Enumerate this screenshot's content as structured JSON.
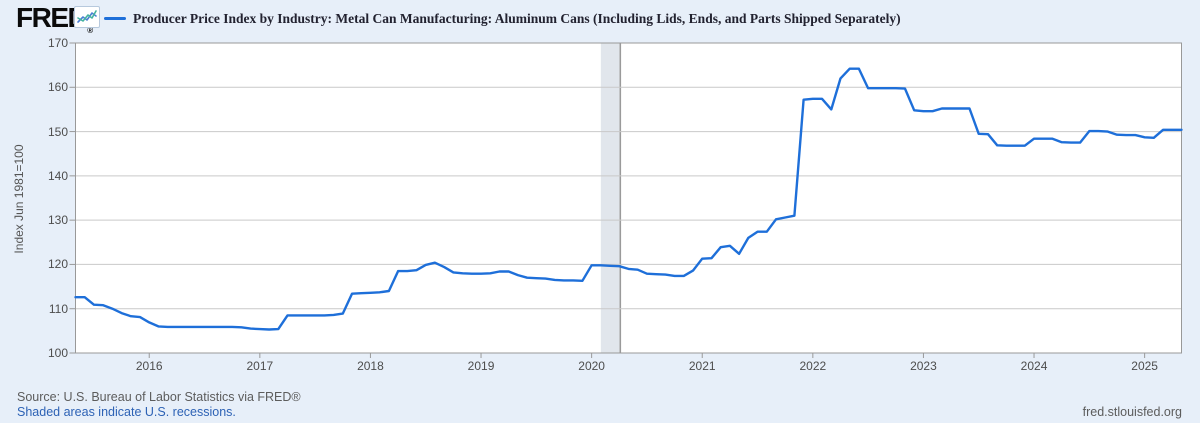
{
  "header": {
    "logo": "FRED",
    "registered": "®",
    "legend_label": "Producer Price Index by Industry: Metal Can Manufacturing: Aluminum Cans (Including Lids, Ends, and Parts Shipped Separately)"
  },
  "footer": {
    "source": "Source: U.S. Bureau of Labor Statistics via FRED®",
    "recession_note": "Shaded areas indicate U.S. recessions.",
    "site": "fred.stlouisfed.org"
  },
  "colors": {
    "line": "#1e6fd9",
    "page_background": "#e7eff9",
    "plot_background": "#ffffff",
    "grid": "#c9c9c9",
    "axis_border": "#999999",
    "recession_band": "#e1e6ec",
    "recession_edge": "#9a9a9a",
    "link": "#2d62b5",
    "muted_text": "#5c5c5c"
  },
  "chart_data": {
    "type": "line",
    "title": "Producer Price Index by Industry: Metal Can Manufacturing: Aluminum Cans (Including Lids, Ends, and Parts Shipped Separately)",
    "xlabel": "",
    "ylabel": "Index Jun 1981=100",
    "ylim": [
      100,
      170
    ],
    "y_ticks": [
      100,
      110,
      120,
      130,
      140,
      150,
      160,
      170
    ],
    "x_ticks": [
      "2016",
      "2017",
      "2018",
      "2019",
      "2020",
      "2021",
      "2022",
      "2023",
      "2024",
      "2025"
    ],
    "frequency": "monthly",
    "start": "2015-05",
    "end": "2025-05",
    "grid": "horizontal-only",
    "legend_position": "top",
    "recession": {
      "start": "2020-02",
      "end": "2020-04"
    },
    "series": [
      {
        "name": "Producer Price Index by Industry: Metal Can Manufacturing: Aluminum Cans (Including Lids, Ends, and Parts Shipped Separately)",
        "values": [
          112.6,
          112.6,
          110.9,
          110.8,
          110.0,
          109.0,
          108.3,
          108.1,
          106.9,
          106.0,
          105.9,
          105.9,
          105.9,
          105.9,
          105.9,
          105.9,
          105.9,
          105.9,
          105.8,
          105.5,
          105.4,
          105.3,
          105.4,
          108.5,
          108.5,
          108.5,
          108.5,
          108.5,
          108.6,
          108.9,
          113.4,
          113.5,
          113.6,
          113.7,
          114.0,
          118.5,
          118.5,
          118.7,
          119.9,
          120.4,
          119.4,
          118.2,
          118.0,
          117.9,
          117.9,
          118.0,
          118.4,
          118.4,
          117.6,
          117.0,
          116.9,
          116.8,
          116.5,
          116.4,
          116.4,
          116.3,
          119.8,
          119.8,
          119.7,
          119.6,
          119.0,
          118.8,
          117.9,
          117.8,
          117.7,
          117.4,
          117.4,
          118.6,
          121.3,
          121.4,
          123.9,
          124.2,
          122.4,
          126.0,
          127.4,
          127.4,
          130.2,
          130.6,
          131.0,
          157.2,
          157.4,
          157.4,
          155.0,
          162.0,
          164.2,
          164.2,
          159.8,
          159.8,
          159.8,
          159.8,
          159.7,
          154.8,
          154.6,
          154.6,
          155.2,
          155.2,
          155.2,
          155.2,
          149.5,
          149.4,
          146.9,
          146.8,
          146.8,
          146.8,
          148.4,
          148.4,
          148.4,
          147.6,
          147.5,
          147.5,
          150.1,
          150.1,
          150.0,
          149.3,
          149.2,
          149.2,
          148.7,
          148.6,
          150.4,
          150.4,
          150.4
        ]
      }
    ]
  }
}
